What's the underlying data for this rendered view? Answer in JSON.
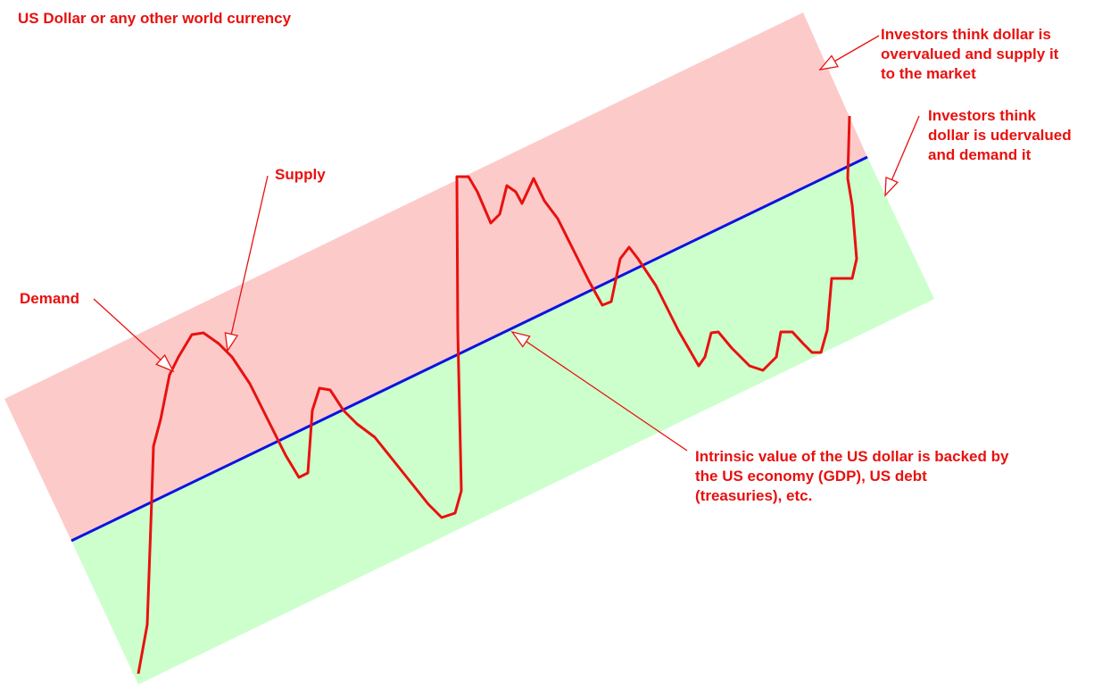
{
  "title": "US Dollar or any other world currency",
  "labels": {
    "overvalued": [
      "Investors think dollar is",
      "overvalued and supply it",
      "to the market"
    ],
    "undervalued": [
      "Investors think",
      "dollar is udervalued",
      "and demand it"
    ],
    "supply": "Supply",
    "demand": "Demand",
    "intrinsic": [
      "Intrinsic value of the US dollar is backed by",
      "the US economy (GDP), US debt",
      "(treasuries), etc."
    ]
  }
}
